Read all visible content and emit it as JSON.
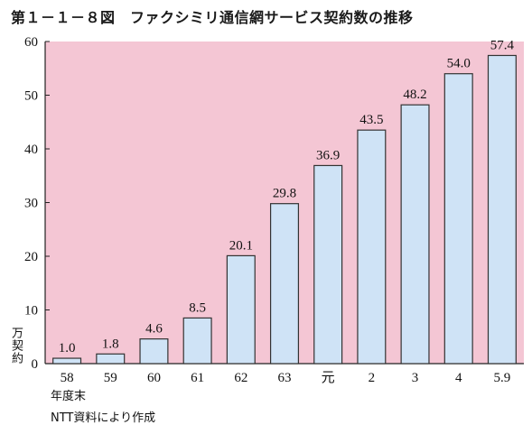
{
  "title": "第１－１－８図　ファクシミリ通信網サービス契約数の推移",
  "source_note": "NTT資料により作成",
  "colors": {
    "plot_background": "#f4c6d4",
    "bar_fill": "#cfe3f6",
    "bar_stroke": "#333333"
  },
  "chart_data": {
    "type": "bar",
    "title": "第１－１－８図　ファクシミリ通信網サービス契約数の推移",
    "xlabel": "年度末",
    "ylabel": "万契約",
    "categories": [
      "58",
      "59",
      "60",
      "61",
      "62",
      "63",
      "元",
      "2",
      "3",
      "4",
      "5.9"
    ],
    "values": [
      1.0,
      1.8,
      4.6,
      8.5,
      20.1,
      29.8,
      36.9,
      43.5,
      48.2,
      54.0,
      57.4
    ],
    "value_labels": [
      "1.0",
      "1.8",
      "4.6",
      "8.5",
      "20.1",
      "29.8",
      "36.9",
      "43.5",
      "48.2",
      "54.0",
      "57.4"
    ],
    "ylim": [
      0,
      60
    ],
    "yticks": [
      "0",
      "10",
      "20",
      "30",
      "40",
      "50",
      "60"
    ],
    "grid": false,
    "legend": "none"
  }
}
